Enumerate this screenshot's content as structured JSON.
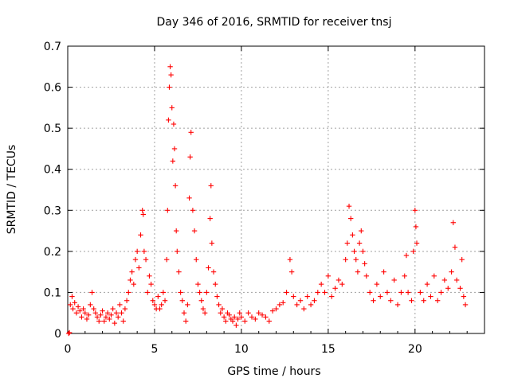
{
  "chart_data": {
    "type": "scatter",
    "title": "Day 346 of 2016, SRMTID for receiver tnsj",
    "xlabel": "GPS time / hours",
    "ylabel": "SRMTID / TECUs",
    "xlim": [
      0,
      24
    ],
    "ylim": [
      0,
      0.7
    ],
    "xticks": [
      0,
      5,
      10,
      15,
      20
    ],
    "xtick_labels": [
      "0",
      "5",
      "10",
      "15",
      "20"
    ],
    "yticks": [
      0,
      0.1,
      0.2,
      0.3,
      0.4,
      0.5,
      0.6,
      0.7
    ],
    "ytick_labels": [
      "0",
      "0.1",
      "0.2",
      "0.3",
      "0.4",
      "0.5",
      "0.6",
      "0.7"
    ],
    "grid": true,
    "marker": "+",
    "color": "#ff0000",
    "series": [
      {
        "name": "SRMTID",
        "points": [
          [
            0.05,
            0.0
          ],
          [
            0.1,
            0.002
          ],
          [
            0.15,
            0.07
          ],
          [
            0.25,
            0.09
          ],
          [
            0.3,
            0.06
          ],
          [
            0.4,
            0.075
          ],
          [
            0.5,
            0.05
          ],
          [
            0.6,
            0.065
          ],
          [
            0.7,
            0.055
          ],
          [
            0.8,
            0.04
          ],
          [
            0.9,
            0.06
          ],
          [
            1.0,
            0.05
          ],
          [
            1.1,
            0.035
          ],
          [
            1.2,
            0.045
          ],
          [
            1.3,
            0.07
          ],
          [
            1.4,
            0.1
          ],
          [
            1.5,
            0.06
          ],
          [
            1.6,
            0.05
          ],
          [
            1.7,
            0.04
          ],
          [
            1.8,
            0.03
          ],
          [
            1.9,
            0.045
          ],
          [
            2.0,
            0.055
          ],
          [
            2.1,
            0.03
          ],
          [
            2.2,
            0.04
          ],
          [
            2.3,
            0.05
          ],
          [
            2.4,
            0.035
          ],
          [
            2.5,
            0.045
          ],
          [
            2.6,
            0.06
          ],
          [
            2.7,
            0.025
          ],
          [
            2.8,
            0.05
          ],
          [
            2.9,
            0.04
          ],
          [
            3.0,
            0.07
          ],
          [
            3.1,
            0.05
          ],
          [
            3.2,
            0.03
          ],
          [
            3.3,
            0.06
          ],
          [
            3.4,
            0.08
          ],
          [
            3.5,
            0.1
          ],
          [
            3.6,
            0.13
          ],
          [
            3.7,
            0.15
          ],
          [
            3.8,
            0.12
          ],
          [
            3.9,
            0.18
          ],
          [
            4.0,
            0.2
          ],
          [
            4.1,
            0.16
          ],
          [
            4.2,
            0.24
          ],
          [
            4.3,
            0.3
          ],
          [
            4.35,
            0.29
          ],
          [
            4.4,
            0.2
          ],
          [
            4.5,
            0.18
          ],
          [
            4.6,
            0.1
          ],
          [
            4.7,
            0.14
          ],
          [
            4.8,
            0.12
          ],
          [
            4.9,
            0.08
          ],
          [
            5.0,
            0.07
          ],
          [
            5.1,
            0.06
          ],
          [
            5.2,
            0.09
          ],
          [
            5.3,
            0.06
          ],
          [
            5.4,
            0.07
          ],
          [
            5.5,
            0.1
          ],
          [
            5.6,
            0.08
          ],
          [
            5.7,
            0.18
          ],
          [
            5.75,
            0.3
          ],
          [
            5.8,
            0.52
          ],
          [
            5.85,
            0.6
          ],
          [
            5.9,
            0.65
          ],
          [
            5.95,
            0.63
          ],
          [
            6.0,
            0.55
          ],
          [
            6.05,
            0.42
          ],
          [
            6.1,
            0.51
          ],
          [
            6.15,
            0.45
          ],
          [
            6.2,
            0.36
          ],
          [
            6.25,
            0.25
          ],
          [
            6.3,
            0.2
          ],
          [
            6.4,
            0.15
          ],
          [
            6.5,
            0.1
          ],
          [
            6.6,
            0.08
          ],
          [
            6.7,
            0.05
          ],
          [
            6.8,
            0.03
          ],
          [
            6.9,
            0.07
          ],
          [
            7.0,
            0.33
          ],
          [
            7.05,
            0.43
          ],
          [
            7.1,
            0.49
          ],
          [
            7.2,
            0.3
          ],
          [
            7.3,
            0.25
          ],
          [
            7.4,
            0.18
          ],
          [
            7.5,
            0.12
          ],
          [
            7.6,
            0.1
          ],
          [
            7.7,
            0.08
          ],
          [
            7.8,
            0.06
          ],
          [
            7.9,
            0.05
          ],
          [
            8.0,
            0.1
          ],
          [
            8.1,
            0.16
          ],
          [
            8.2,
            0.28
          ],
          [
            8.25,
            0.36
          ],
          [
            8.3,
            0.22
          ],
          [
            8.4,
            0.15
          ],
          [
            8.5,
            0.12
          ],
          [
            8.6,
            0.09
          ],
          [
            8.7,
            0.07
          ],
          [
            8.8,
            0.05
          ],
          [
            8.9,
            0.06
          ],
          [
            9.0,
            0.04
          ],
          [
            9.1,
            0.03
          ],
          [
            9.2,
            0.05
          ],
          [
            9.3,
            0.045
          ],
          [
            9.4,
            0.035
          ],
          [
            9.5,
            0.03
          ],
          [
            9.6,
            0.04
          ],
          [
            9.7,
            0.02
          ],
          [
            9.8,
            0.035
          ],
          [
            9.9,
            0.05
          ],
          [
            10.0,
            0.04
          ],
          [
            10.2,
            0.03
          ],
          [
            10.4,
            0.05
          ],
          [
            10.6,
            0.04
          ],
          [
            10.8,
            0.035
          ],
          [
            11.0,
            0.05
          ],
          [
            11.2,
            0.045
          ],
          [
            11.4,
            0.04
          ],
          [
            11.6,
            0.03
          ],
          [
            11.8,
            0.055
          ],
          [
            12.0,
            0.06
          ],
          [
            12.2,
            0.07
          ],
          [
            12.4,
            0.075
          ],
          [
            12.6,
            0.1
          ],
          [
            12.8,
            0.18
          ],
          [
            12.9,
            0.15
          ],
          [
            13.0,
            0.09
          ],
          [
            13.2,
            0.07
          ],
          [
            13.4,
            0.08
          ],
          [
            13.6,
            0.06
          ],
          [
            13.8,
            0.09
          ],
          [
            14.0,
            0.07
          ],
          [
            14.2,
            0.08
          ],
          [
            14.4,
            0.1
          ],
          [
            14.6,
            0.12
          ],
          [
            14.8,
            0.1
          ],
          [
            15.0,
            0.14
          ],
          [
            15.2,
            0.09
          ],
          [
            15.4,
            0.11
          ],
          [
            15.6,
            0.13
          ],
          [
            15.8,
            0.12
          ],
          [
            16.0,
            0.18
          ],
          [
            16.1,
            0.22
          ],
          [
            16.2,
            0.31
          ],
          [
            16.3,
            0.28
          ],
          [
            16.4,
            0.24
          ],
          [
            16.5,
            0.2
          ],
          [
            16.6,
            0.18
          ],
          [
            16.7,
            0.15
          ],
          [
            16.8,
            0.22
          ],
          [
            16.9,
            0.25
          ],
          [
            17.0,
            0.2
          ],
          [
            17.1,
            0.17
          ],
          [
            17.2,
            0.14
          ],
          [
            17.4,
            0.1
          ],
          [
            17.6,
            0.08
          ],
          [
            17.8,
            0.12
          ],
          [
            18.0,
            0.09
          ],
          [
            18.2,
            0.15
          ],
          [
            18.4,
            0.1
          ],
          [
            18.6,
            0.08
          ],
          [
            18.8,
            0.13
          ],
          [
            19.0,
            0.07
          ],
          [
            19.2,
            0.1
          ],
          [
            19.4,
            0.14
          ],
          [
            19.5,
            0.19
          ],
          [
            19.6,
            0.1
          ],
          [
            19.8,
            0.08
          ],
          [
            19.9,
            0.2
          ],
          [
            20.0,
            0.3
          ],
          [
            20.05,
            0.26
          ],
          [
            20.1,
            0.22
          ],
          [
            20.3,
            0.1
          ],
          [
            20.5,
            0.08
          ],
          [
            20.7,
            0.12
          ],
          [
            20.9,
            0.09
          ],
          [
            21.1,
            0.14
          ],
          [
            21.3,
            0.08
          ],
          [
            21.5,
            0.1
          ],
          [
            21.7,
            0.13
          ],
          [
            21.9,
            0.11
          ],
          [
            22.1,
            0.15
          ],
          [
            22.2,
            0.27
          ],
          [
            22.3,
            0.21
          ],
          [
            22.4,
            0.13
          ],
          [
            22.6,
            0.11
          ],
          [
            22.7,
            0.18
          ],
          [
            22.8,
            0.09
          ],
          [
            22.9,
            0.07
          ]
        ]
      }
    ]
  }
}
